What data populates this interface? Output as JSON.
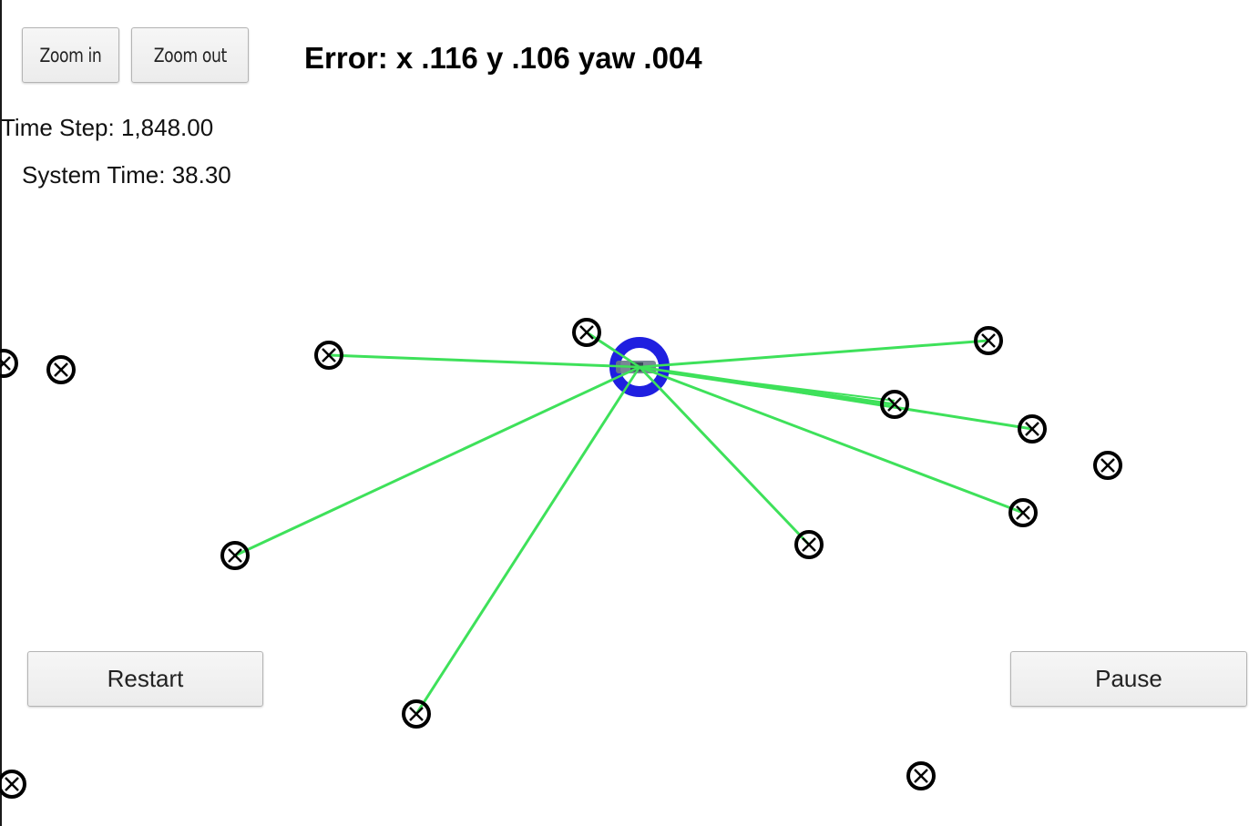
{
  "toolbar": {
    "zoom_in_label": "Zoom in",
    "zoom_out_label": "Zoom out"
  },
  "status": {
    "error_text": "Error: x .116 y .106 yaw .004",
    "time_step_text": "Time Step: 1,848.00",
    "system_time_text": "System Time: 38.30"
  },
  "controls": {
    "restart_label": "Restart",
    "pause_label": "Pause"
  },
  "colors": {
    "observation_line": "#3ee15a",
    "vehicle_ring": "#1f1fe0",
    "vehicle_body": "#6a7a8a",
    "landmark": "#000000"
  },
  "icons": {
    "landmark": "circled-x-icon",
    "vehicle": "vehicle-marker-icon"
  }
}
